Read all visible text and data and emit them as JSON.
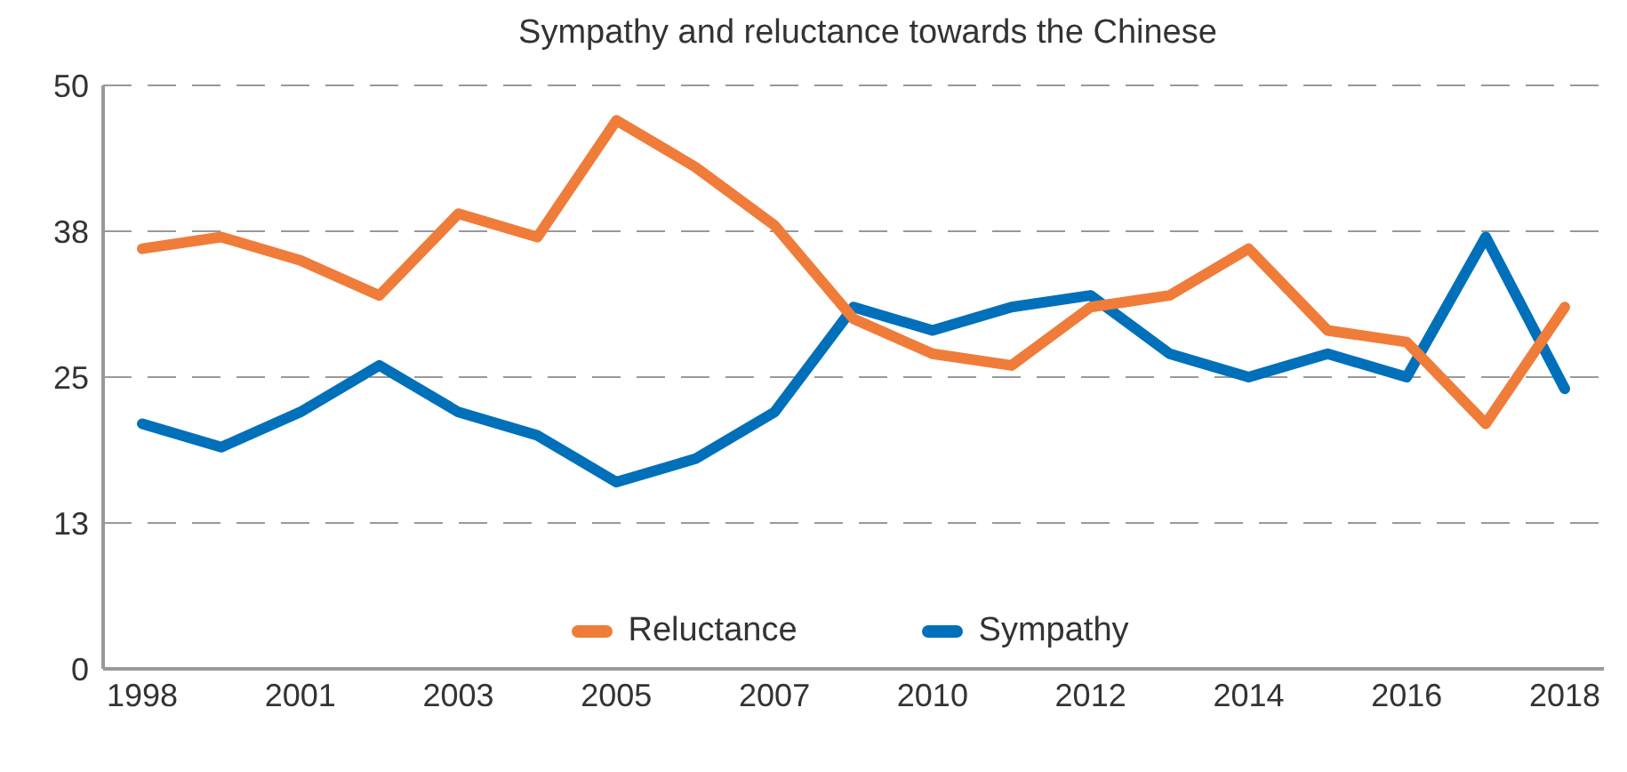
{
  "chart_data": {
    "type": "line",
    "title": "Sympathy and reluctance towards the Chinese",
    "categories": [
      "1998",
      null,
      "2001",
      null,
      "2003",
      null,
      "2005",
      null,
      "2007",
      null,
      "2010",
      null,
      "2012",
      null,
      "2014",
      null,
      "2016",
      null,
      "2018"
    ],
    "series": [
      {
        "name": "Sympathy",
        "color": "#0070ba",
        "values": [
          21,
          19,
          22,
          26,
          22,
          20,
          16,
          18,
          22,
          31,
          29,
          31,
          32,
          27,
          25,
          27,
          25,
          37,
          24
        ]
      },
      {
        "name": "Reluctance",
        "color": "#f07c3a",
        "values": [
          36,
          37,
          35,
          32,
          39,
          37,
          47,
          43,
          38,
          30,
          27,
          26,
          31,
          32,
          36,
          29,
          28,
          21,
          31
        ]
      }
    ],
    "ylim": [
      0,
      50
    ],
    "yticks": [
      0,
      {
        "value": 12.5,
        "label": "13"
      },
      25,
      {
        "value": 37.5,
        "label": "38"
      },
      50
    ],
    "grid": "y",
    "legend": "bottom",
    "marker": "none",
    "line_style": "solid"
  }
}
